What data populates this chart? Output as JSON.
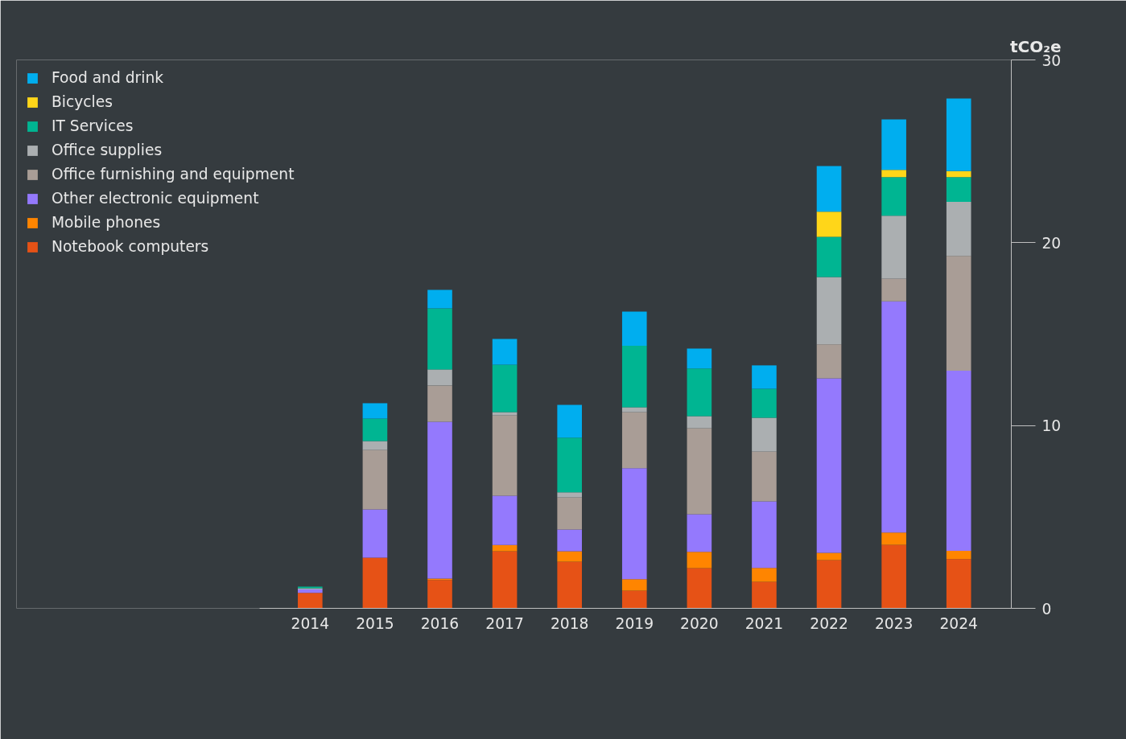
{
  "chart_data": {
    "type": "bar",
    "stacked": true,
    "ylabel": "tCO₂e",
    "categories": [
      "2014",
      "2015",
      "2016",
      "2017",
      "2018",
      "2019",
      "2020",
      "2021",
      "2022",
      "2023",
      "2024"
    ],
    "series": [
      {
        "name": "Notebook computers",
        "color": "#e65216",
        "values": [
          0.85,
          2.77,
          1.55,
          3.12,
          2.55,
          0.97,
          2.2,
          1.45,
          2.64,
          3.48,
          2.69
        ]
      },
      {
        "name": "Mobile phones",
        "color": "#ff8500",
        "values": [
          0,
          0,
          0.08,
          0.34,
          0.57,
          0.63,
          0.89,
          0.76,
          0.39,
          0.67,
          0.45
        ]
      },
      {
        "name": "Other electronic equipment",
        "color": "#9479fd",
        "values": [
          0.18,
          2.64,
          8.58,
          2.7,
          1.19,
          6.07,
          2.06,
          3.64,
          9.55,
          12.64,
          9.86
        ]
      },
      {
        "name": "Office furnishing and equipment",
        "color": "#a99d96",
        "values": [
          0,
          3.26,
          1.98,
          4.4,
          1.76,
          3.06,
          4.7,
          2.73,
          1.86,
          1.24,
          6.28
        ]
      },
      {
        "name": "Office supplies",
        "color": "#abafb1",
        "values": [
          0.07,
          0.48,
          0.88,
          0.17,
          0.27,
          0.27,
          0.66,
          1.85,
          3.68,
          3.45,
          2.96
        ]
      },
      {
        "name": "IT Services",
        "color": "#00b592",
        "values": [
          0.09,
          1.23,
          3.34,
          2.6,
          3.0,
          3.36,
          2.61,
          1.58,
          2.2,
          2.11,
          1.35
        ]
      },
      {
        "name": "Bicycles",
        "color": "#ffd619",
        "values": [
          0,
          0,
          0,
          0,
          0,
          0,
          0,
          0,
          1.38,
          0.4,
          0.33
        ]
      },
      {
        "name": "Food and drink",
        "color": "#00aeef",
        "values": [
          0,
          0.84,
          1.01,
          1.41,
          1.79,
          1.87,
          1.09,
          1.28,
          2.49,
          2.76,
          3.97
        ]
      }
    ],
    "ylim": [
      0,
      30
    ],
    "yticks": [
      0,
      10,
      20,
      30
    ],
    "grid": false,
    "legend": "top left"
  }
}
